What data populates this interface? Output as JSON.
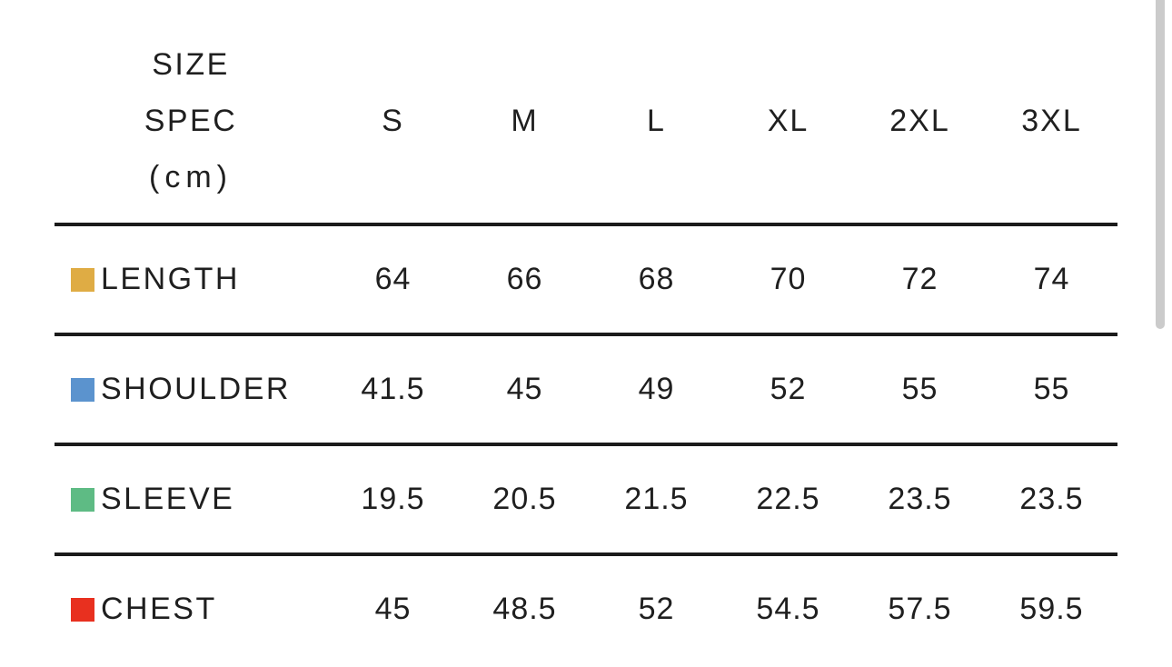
{
  "colors": {
    "background": "#ffffff",
    "text": "#1f1f1f",
    "divider": "#1b1b1b",
    "scrollbar_thumb": "#cbcbcb",
    "swatch_gold": "#dfac44",
    "swatch_blue": "#5b93ce",
    "swatch_green": "#5ebb84",
    "swatch_red": "#e8301f"
  },
  "table": {
    "header": {
      "label_lines": [
        "SIZE",
        "SPEC",
        "(cm)"
      ],
      "columns": [
        "S",
        "M",
        "L",
        "XL",
        "2XL",
        "3XL"
      ]
    },
    "rows": [
      {
        "label": "LENGTH",
        "swatch_color": "#dfac44",
        "values": [
          "64",
          "66",
          "68",
          "70",
          "72",
          "74"
        ]
      },
      {
        "label": "SHOULDER",
        "swatch_color": "#5b93ce",
        "values": [
          "41.5",
          "45",
          "49",
          "52",
          "55",
          "55"
        ]
      },
      {
        "label": "SLEEVE",
        "swatch_color": "#5ebb84",
        "values": [
          "19.5",
          "20.5",
          "21.5",
          "22.5",
          "23.5",
          "23.5"
        ]
      },
      {
        "label": "CHEST",
        "swatch_color": "#e8301f",
        "values": [
          "45",
          "48.5",
          "52",
          "54.5",
          "57.5",
          "59.5"
        ]
      }
    ]
  },
  "chart_data": {
    "type": "table",
    "title": "SIZE SPEC (cm)",
    "columns": [
      "S",
      "M",
      "L",
      "XL",
      "2XL",
      "3XL"
    ],
    "rows": [
      {
        "name": "LENGTH",
        "values": [
          64,
          66,
          68,
          70,
          72,
          74
        ]
      },
      {
        "name": "SHOULDER",
        "values": [
          41.5,
          45,
          49,
          52,
          55,
          55
        ]
      },
      {
        "name": "SLEEVE",
        "values": [
          19.5,
          20.5,
          21.5,
          22.5,
          23.5,
          23.5
        ]
      },
      {
        "name": "CHEST",
        "values": [
          45,
          48.5,
          52,
          54.5,
          57.5,
          59.5
        ]
      }
    ]
  }
}
